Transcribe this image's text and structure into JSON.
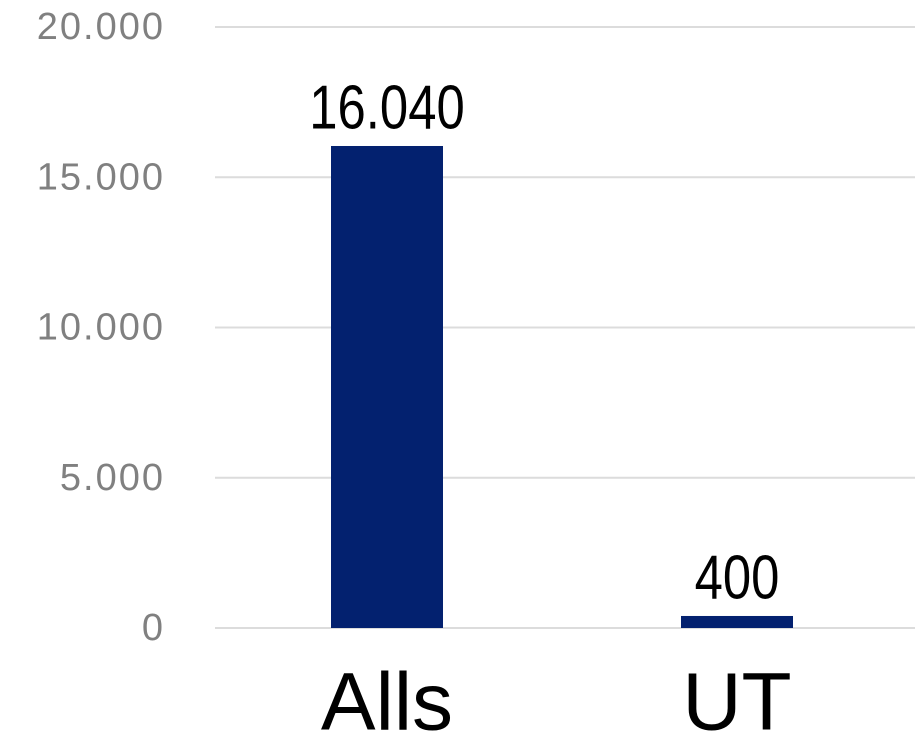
{
  "chart_data": {
    "type": "bar",
    "categories": [
      "Alls",
      "UT"
    ],
    "values": [
      16040,
      400
    ],
    "value_labels": [
      "16.040",
      "400"
    ],
    "color": "#03216f",
    "ylim": [
      0,
      20000
    ],
    "yticks": [
      0,
      {
        "value": 5000,
        "label": "5.000"
      },
      {
        "value": 10000,
        "label": "10.000"
      },
      {
        "value": 15000,
        "label": "15.000"
      },
      {
        "value": 20000,
        "label": "20.000"
      }
    ],
    "grid": true
  }
}
